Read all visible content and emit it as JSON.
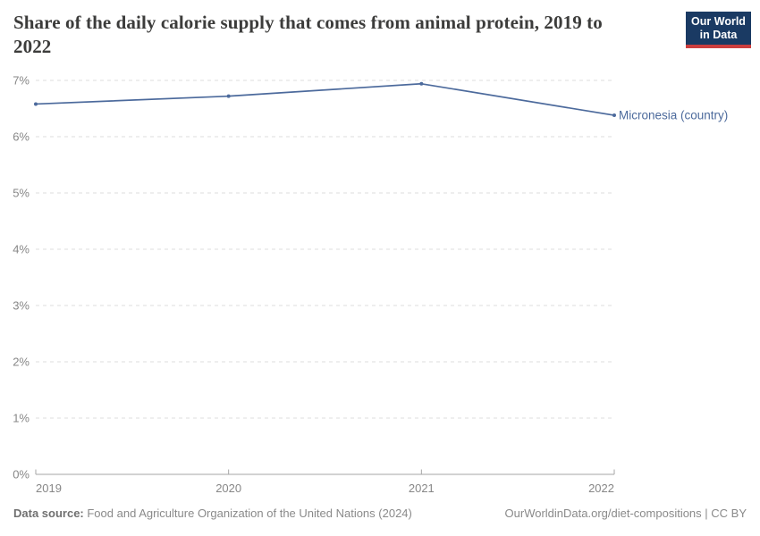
{
  "header": {
    "title": "Share of the daily calorie supply that comes from animal protein, 2019 to 2022",
    "logo": {
      "line1": "Our World",
      "line2": "in Data"
    }
  },
  "chart_data": {
    "type": "line",
    "title": "Share of the daily calorie supply that comes from animal protein, 2019 to 2022",
    "series": [
      {
        "name": "Micronesia (country)",
        "x": [
          2019,
          2020,
          2021,
          2022
        ],
        "values": [
          6.58,
          6.72,
          6.94,
          6.38
        ],
        "color": "#4C6A9C"
      }
    ],
    "x_tick_labels": [
      "2019",
      "2020",
      "2021",
      "2022"
    ],
    "y_tick_labels": [
      "0%",
      "1%",
      "2%",
      "3%",
      "4%",
      "5%",
      "6%",
      "7%"
    ],
    "xlim": [
      2019,
      2022
    ],
    "ylim": [
      0,
      7
    ],
    "grid": "horizontal-dashed",
    "legend_position": "end-of-line-label"
  },
  "footer": {
    "source_label": "Data source:",
    "source_text": " Food and Agriculture Organization of the United Nations (2024)",
    "attribution": "OurWorldinData.org/diet-compositions | CC BY"
  },
  "colors": {
    "line": "#4C6A9C",
    "logo_bg": "#1a3a63",
    "logo_stripe": "#cc3e3e",
    "gridline": "#dcdcdc",
    "axis": "#a6a6a6",
    "tick_text": "#878787"
  }
}
